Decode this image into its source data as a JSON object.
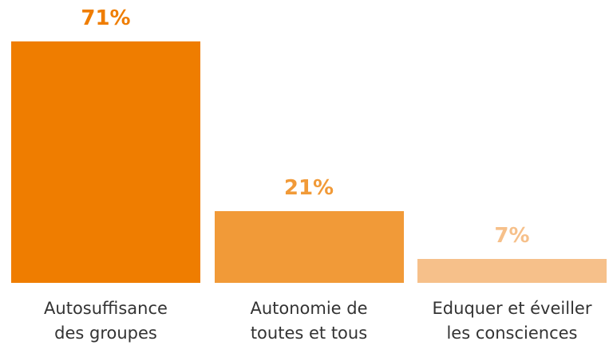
{
  "chart_data": {
    "type": "bar",
    "categories": [
      "Autosuffisance\ndes groupes",
      "Autonomie de\ntoutes et tous",
      "Eduquer et éveiller\nles consciences"
    ],
    "values": [
      71,
      21,
      7
    ],
    "value_labels": [
      "71%",
      "21%",
      "7%"
    ],
    "colors": [
      "#ef7d00",
      "#f19a38",
      "#f6c08a"
    ]
  }
}
